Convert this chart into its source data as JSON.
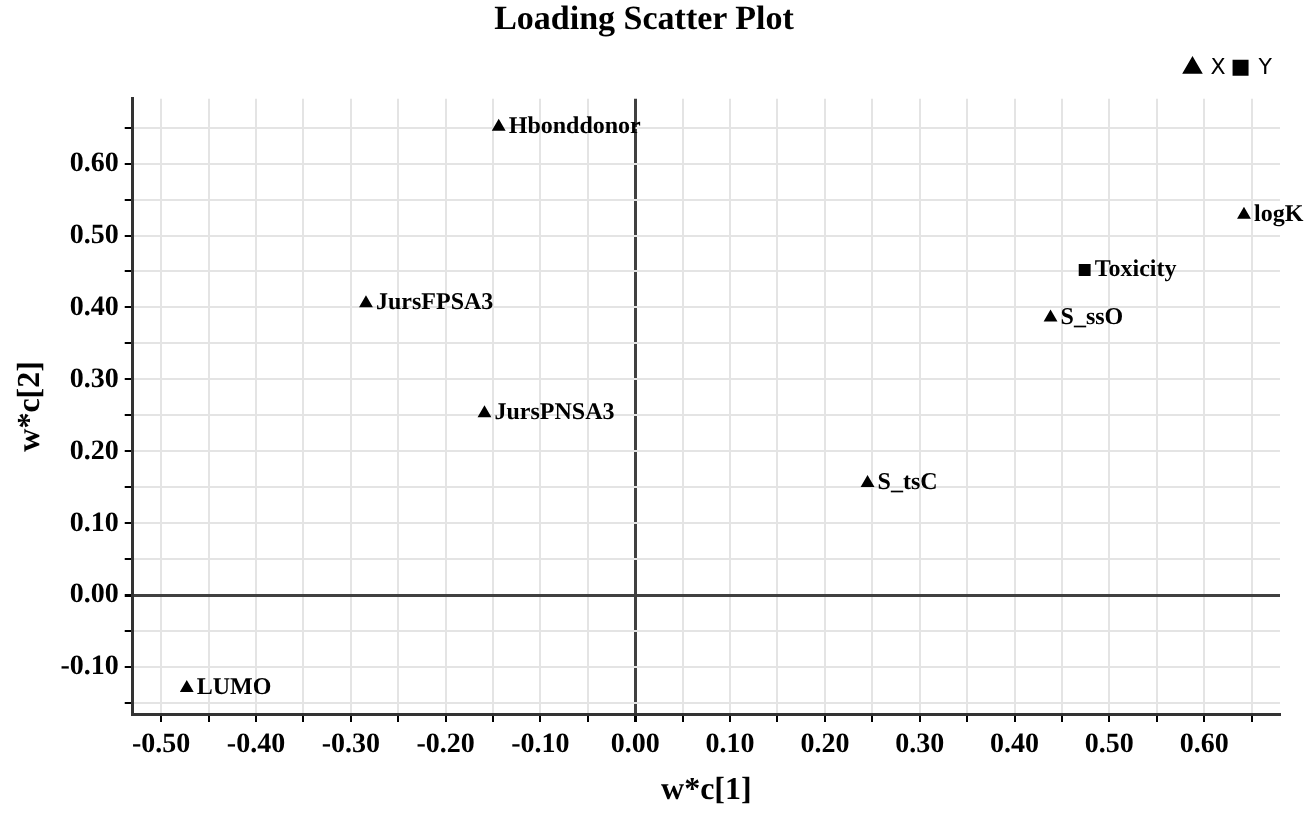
{
  "chart_data": {
    "type": "scatter",
    "title": "Loading Scatter Plot",
    "xlabel": "w*c[1]",
    "ylabel": "w*c[2]",
    "series": [
      {
        "name": "X",
        "color": "#000000",
        "marker": "triangle",
        "x": [
          -0.144,
          -0.284,
          -0.159,
          -0.473,
          0.642,
          0.438,
          0.245
        ],
        "values": [
          0.651,
          0.406,
          0.253,
          -0.129,
          0.529,
          0.386,
          0.156
        ]
      },
      {
        "name": "Y",
        "color": "#000000",
        "marker": "square",
        "x": [
          0.474
        ],
        "values": [
          0.452
        ]
      }
    ],
    "annotations": [
      {
        "text": "Hbonddonor",
        "x": -0.144,
        "y": 0.651
      },
      {
        "text": "JursFPSA3",
        "x": -0.284,
        "y": 0.406
      },
      {
        "text": "JursPNSA3",
        "x": -0.159,
        "y": 0.253
      },
      {
        "text": "LUMO",
        "x": -0.473,
        "y": -0.129
      },
      {
        "text": "logK",
        "x": 0.642,
        "y": 0.529
      },
      {
        "text": "S_ssO",
        "x": 0.438,
        "y": 0.386
      },
      {
        "text": "S_tsC",
        "x": 0.245,
        "y": 0.156
      },
      {
        "text": "Toxicity",
        "x": 0.474,
        "y": 0.452
      }
    ],
    "xlim": [
      -0.53,
      0.68
    ],
    "ylim": [
      -0.165,
      0.69
    ],
    "xticks": [
      {
        "value": -0.5,
        "label": "-0.50"
      },
      {
        "value": -0.45,
        "label": null
      },
      {
        "value": -0.4,
        "label": "-0.40"
      },
      {
        "value": -0.35,
        "label": null
      },
      {
        "value": -0.3,
        "label": "-0.30"
      },
      {
        "value": -0.25,
        "label": null
      },
      {
        "value": -0.2,
        "label": "-0.20"
      },
      {
        "value": -0.15,
        "label": null
      },
      {
        "value": -0.1,
        "label": "-0.10"
      },
      {
        "value": -0.05,
        "label": null
      },
      {
        "value": 0,
        "label": "0.00"
      },
      {
        "value": 0.05,
        "label": null
      },
      {
        "value": 0.1,
        "label": "0.10"
      },
      {
        "value": 0.15,
        "label": null
      },
      {
        "value": 0.2,
        "label": "0.20"
      },
      {
        "value": 0.25,
        "label": null
      },
      {
        "value": 0.3,
        "label": "0.30"
      },
      {
        "value": 0.35,
        "label": null
      },
      {
        "value": 0.4,
        "label": "0.40"
      },
      {
        "value": 0.45,
        "label": null
      },
      {
        "value": 0.5,
        "label": "0.50"
      },
      {
        "value": 0.55,
        "label": null
      },
      {
        "value": 0.6,
        "label": "0.60"
      },
      {
        "value": 0.65,
        "label": null
      }
    ],
    "yticks": [
      {
        "value": -0.15,
        "label": null
      },
      {
        "value": -0.1,
        "label": "-0.10"
      },
      {
        "value": -0.05,
        "label": null
      },
      {
        "value": 0,
        "label": "0.00"
      },
      {
        "value": 0.05,
        "label": null
      },
      {
        "value": 0.1,
        "label": "0.10"
      },
      {
        "value": 0.15,
        "label": null
      },
      {
        "value": 0.2,
        "label": "0.20"
      },
      {
        "value": 0.25,
        "label": null
      },
      {
        "value": 0.3,
        "label": "0.30"
      },
      {
        "value": 0.35,
        "label": null
      },
      {
        "value": 0.4,
        "label": "0.40"
      },
      {
        "value": 0.45,
        "label": null
      },
      {
        "value": 0.5,
        "label": "0.50"
      },
      {
        "value": 0.55,
        "label": null
      },
      {
        "value": 0.6,
        "label": "0.60"
      },
      {
        "value": 0.65,
        "label": null
      }
    ],
    "grid": true,
    "legend": "top right"
  }
}
